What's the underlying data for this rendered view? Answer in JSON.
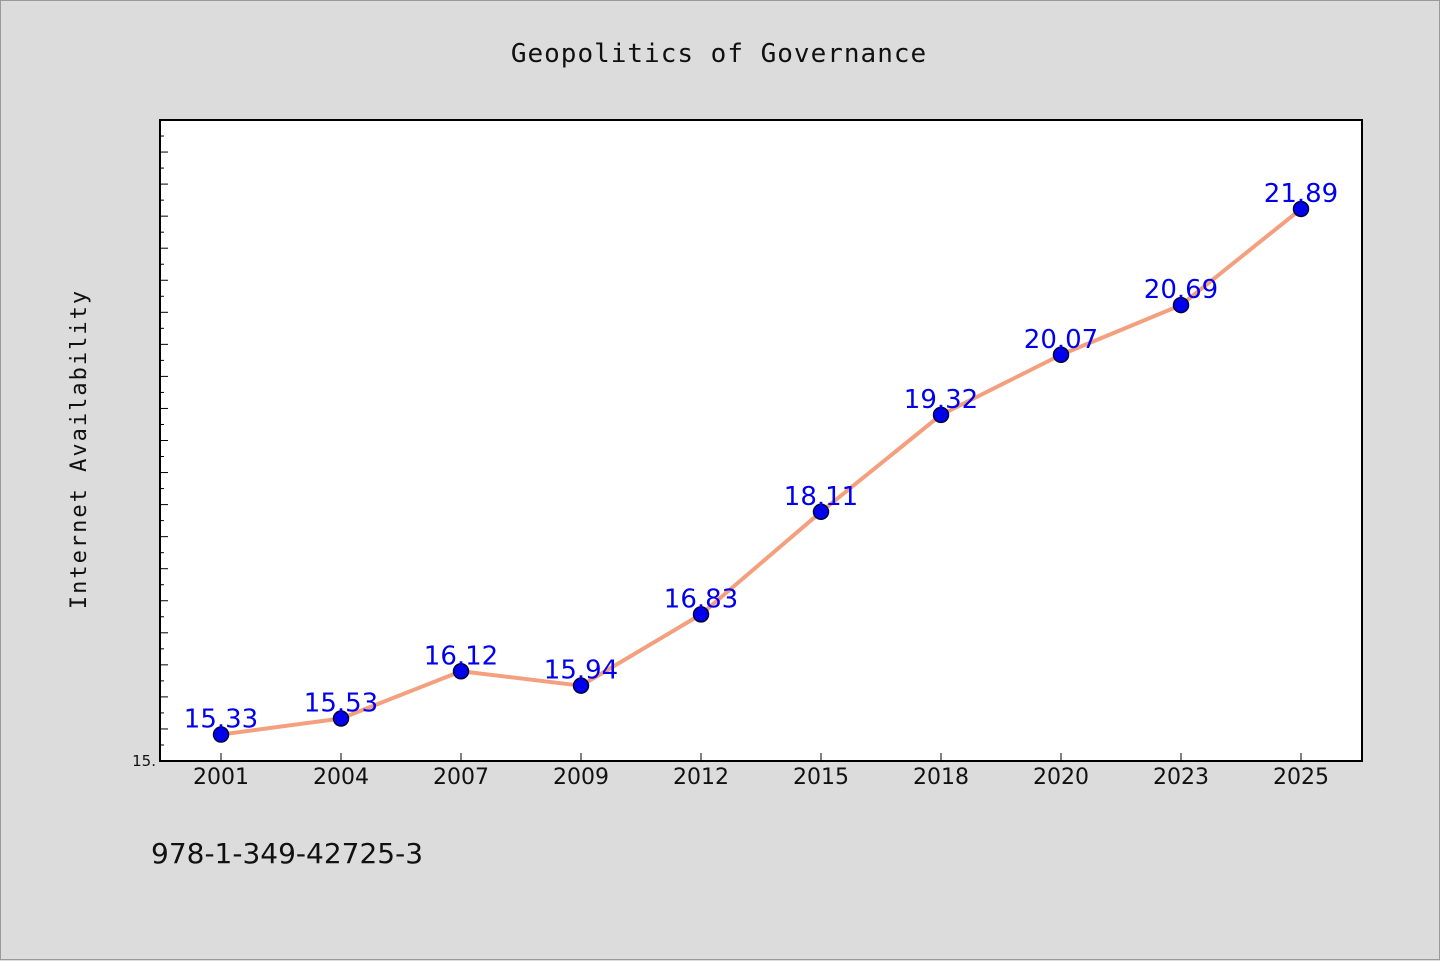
{
  "chart_data": {
    "type": "line",
    "title": "Geopolitics of Governance",
    "xlabel": "",
    "ylabel": "Internet Availability",
    "categories": [
      "2001",
      "2004",
      "2007",
      "2009",
      "2012",
      "2015",
      "2018",
      "2020",
      "2023",
      "2025"
    ],
    "series": [
      {
        "values": [
          15.33,
          15.53,
          16.12,
          15.94,
          16.83,
          18.11,
          19.32,
          20.07,
          20.69,
          21.89
        ],
        "data_labels": [
          "15.33",
          "15.53",
          "16.12",
          "15.94",
          "16.83",
          "18.11",
          "19.32",
          "20.07",
          "20.69",
          "21.89"
        ]
      }
    ],
    "y_tick_labels": [
      "15."
    ],
    "ylim": [
      15.0,
      23.0
    ],
    "grid": false,
    "legend": "none",
    "colors": {
      "line": "#f4a07e",
      "marker_fill": "#0000ee",
      "marker_edge": "#000033",
      "data_label": "#0000ee",
      "plot_background": "#ffffff",
      "figure_background": "#dcdcdc"
    }
  },
  "footer": {
    "isbn": "978-1-349-42725-3"
  }
}
